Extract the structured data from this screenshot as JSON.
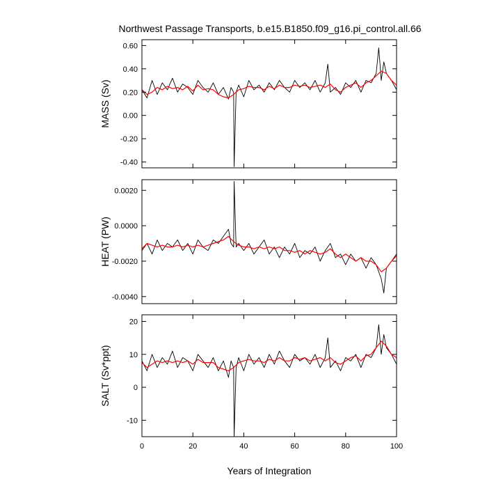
{
  "chart_data": {
    "type": "line",
    "title": "Northwest Passage Transports, b.e15.B1850.f09_g16.pi_control.all.66",
    "xlabel": "Years of Integration",
    "xlim": [
      0,
      100
    ],
    "xticks": [
      "0",
      "20",
      "40",
      "60",
      "80",
      "100"
    ],
    "xtick_values": [
      0,
      20,
      40,
      60,
      80,
      100
    ],
    "grid": false,
    "panels": [
      {
        "ylabel": "MASS (Sv)",
        "ylim": [
          -0.45,
          0.65
        ],
        "yticks": [
          "-0.40",
          "-0.20",
          "0.00",
          "0.20",
          "0.40",
          "0.60"
        ],
        "ytick_values": [
          -0.4,
          -0.2,
          0.0,
          0.2,
          0.4,
          0.6
        ],
        "series": [
          {
            "name": "",
            "color": "#000000",
            "x": [
              0,
              2,
              4,
              6,
              8,
              10,
              12,
              14,
              16,
              18,
              20,
              22,
              24,
              26,
              28,
              30,
              32,
              34,
              35,
              36,
              36.2,
              37,
              38,
              40,
              42,
              44,
              46,
              48,
              50,
              52,
              54,
              56,
              58,
              60,
              62,
              64,
              66,
              68,
              70,
              72,
              73,
              74,
              76,
              78,
              80,
              82,
              84,
              86,
              88,
              90,
              92,
              93,
              94,
              95,
              96,
              98,
              100
            ],
            "values": [
              0.22,
              0.15,
              0.3,
              0.18,
              0.28,
              0.22,
              0.32,
              0.2,
              0.27,
              0.24,
              0.18,
              0.3,
              0.24,
              0.2,
              0.28,
              0.18,
              0.24,
              0.14,
              0.24,
              0.2,
              -0.44,
              0.2,
              0.26,
              0.16,
              0.3,
              0.22,
              0.26,
              0.2,
              0.28,
              0.22,
              0.3,
              0.24,
              0.2,
              0.3,
              0.24,
              0.28,
              0.22,
              0.3,
              0.2,
              0.28,
              0.44,
              0.2,
              0.24,
              0.18,
              0.28,
              0.24,
              0.3,
              0.2,
              0.3,
              0.28,
              0.36,
              0.58,
              0.3,
              0.46,
              0.36,
              0.3,
              0.22
            ]
          },
          {
            "name": "",
            "color": "#ff0000",
            "x": [
              0,
              2,
              4,
              6,
              8,
              10,
              12,
              14,
              16,
              18,
              20,
              22,
              24,
              26,
              28,
              30,
              32,
              34,
              36,
              38,
              40,
              42,
              44,
              46,
              48,
              50,
              52,
              54,
              56,
              58,
              60,
              62,
              64,
              66,
              68,
              70,
              72,
              74,
              76,
              78,
              80,
              82,
              84,
              86,
              88,
              90,
              92,
              94,
              96,
              98,
              100
            ],
            "values": [
              0.22,
              0.18,
              0.2,
              0.24,
              0.22,
              0.25,
              0.23,
              0.24,
              0.22,
              0.25,
              0.21,
              0.26,
              0.22,
              0.23,
              0.22,
              0.18,
              0.16,
              0.15,
              0.18,
              0.22,
              0.23,
              0.25,
              0.24,
              0.24,
              0.22,
              0.25,
              0.23,
              0.26,
              0.24,
              0.24,
              0.26,
              0.25,
              0.26,
              0.24,
              0.25,
              0.26,
              0.24,
              0.27,
              0.22,
              0.2,
              0.24,
              0.26,
              0.28,
              0.24,
              0.28,
              0.3,
              0.34,
              0.38,
              0.36,
              0.3,
              0.26
            ]
          }
        ]
      },
      {
        "ylabel": "HEAT (PW)",
        "ylim": [
          -0.0044,
          0.0026
        ],
        "yticks": [
          "-0.0040",
          "-0.0020",
          "0.0000",
          "0.0020"
        ],
        "ytick_values": [
          -0.004,
          -0.002,
          0.0,
          0.002
        ],
        "series": [
          {
            "name": "",
            "color": "#000000",
            "x": [
              0,
              2,
              4,
              6,
              8,
              10,
              12,
              14,
              16,
              18,
              20,
              22,
              24,
              26,
              28,
              30,
              32,
              34,
              35,
              36,
              36.2,
              37,
              38,
              40,
              42,
              44,
              46,
              48,
              50,
              52,
              54,
              56,
              58,
              60,
              62,
              64,
              66,
              68,
              70,
              72,
              74,
              76,
              78,
              80,
              82,
              84,
              86,
              88,
              90,
              92,
              94,
              95,
              96,
              98,
              100
            ],
            "values": [
              -0.0014,
              -0.001,
              -0.0016,
              -0.0008,
              -0.0014,
              -0.001,
              -0.0012,
              -0.0008,
              -0.0014,
              -0.001,
              -0.0016,
              -0.0008,
              -0.0012,
              -0.0014,
              -0.0008,
              -0.001,
              -0.0006,
              -0.0002,
              -0.001,
              -0.0012,
              0.0025,
              -0.0012,
              -0.001,
              -0.0014,
              -0.001,
              -0.0016,
              -0.0012,
              -0.0008,
              -0.0016,
              -0.0012,
              -0.0018,
              -0.0012,
              -0.0016,
              -0.001,
              -0.0018,
              -0.0014,
              -0.0016,
              -0.0012,
              -0.002,
              -0.0014,
              -0.001,
              -0.0018,
              -0.0016,
              -0.0022,
              -0.0016,
              -0.002,
              -0.0018,
              -0.0024,
              -0.0018,
              -0.0022,
              -0.003,
              -0.0038,
              -0.0024,
              -0.002,
              -0.0016
            ]
          },
          {
            "name": "",
            "color": "#ff0000",
            "x": [
              0,
              2,
              4,
              6,
              8,
              10,
              12,
              14,
              16,
              18,
              20,
              22,
              24,
              26,
              28,
              30,
              32,
              34,
              36,
              38,
              40,
              42,
              44,
              46,
              48,
              50,
              52,
              54,
              56,
              58,
              60,
              62,
              64,
              66,
              68,
              70,
              72,
              74,
              76,
              78,
              80,
              82,
              84,
              86,
              88,
              90,
              92,
              94,
              96,
              98,
              100
            ],
            "values": [
              -0.0013,
              -0.001,
              -0.0011,
              -0.0012,
              -0.0011,
              -0.0012,
              -0.0012,
              -0.0011,
              -0.0012,
              -0.0011,
              -0.0012,
              -0.0011,
              -0.0012,
              -0.0011,
              -0.001,
              -0.0009,
              -0.0008,
              -0.0006,
              -0.0009,
              -0.0011,
              -0.0012,
              -0.0012,
              -0.0013,
              -0.0012,
              -0.0013,
              -0.0012,
              -0.0013,
              -0.0012,
              -0.0014,
              -0.0014,
              -0.0015,
              -0.0014,
              -0.0016,
              -0.0014,
              -0.0015,
              -0.0016,
              -0.0015,
              -0.0013,
              -0.0016,
              -0.0018,
              -0.0016,
              -0.0018,
              -0.002,
              -0.0018,
              -0.002,
              -0.002,
              -0.0022,
              -0.0026,
              -0.0024,
              -0.002,
              -0.0017
            ]
          }
        ]
      },
      {
        "ylabel": "SALT (Sv*ppt)",
        "ylim": [
          -15,
          22
        ],
        "yticks": [
          "-10",
          "0",
          "10",
          "20"
        ],
        "ytick_values": [
          -10,
          0,
          10,
          20
        ],
        "series": [
          {
            "name": "",
            "color": "#000000",
            "x": [
              0,
              2,
              4,
              6,
              8,
              10,
              12,
              14,
              16,
              18,
              20,
              22,
              24,
              26,
              28,
              30,
              32,
              34,
              35,
              36,
              36.2,
              37,
              38,
              40,
              42,
              44,
              46,
              48,
              50,
              52,
              54,
              56,
              58,
              60,
              62,
              64,
              66,
              68,
              70,
              72,
              73,
              74,
              76,
              78,
              80,
              82,
              84,
              86,
              88,
              90,
              92,
              93,
              94,
              95,
              96,
              98,
              100
            ],
            "values": [
              8,
              5,
              10,
              6,
              9,
              7,
              11,
              6,
              9,
              8,
              5,
              10,
              8,
              6,
              9,
              5,
              8,
              3,
              8,
              6,
              -15,
              6,
              9,
              5,
              10,
              7,
              9,
              6,
              10,
              7,
              11,
              8,
              6,
              10,
              8,
              9,
              7,
              10,
              6,
              9,
              15,
              6,
              8,
              5,
              9,
              8,
              10,
              6,
              10,
              9,
              12,
              19,
              10,
              16,
              12,
              10,
              7
            ]
          },
          {
            "name": "",
            "color": "#ff0000",
            "x": [
              0,
              2,
              4,
              6,
              8,
              10,
              12,
              14,
              16,
              18,
              20,
              22,
              24,
              26,
              28,
              30,
              32,
              34,
              36,
              38,
              40,
              42,
              44,
              46,
              48,
              50,
              52,
              54,
              56,
              58,
              60,
              62,
              64,
              66,
              68,
              70,
              72,
              74,
              76,
              78,
              80,
              82,
              84,
              86,
              88,
              90,
              92,
              94,
              96,
              98,
              100
            ],
            "values": [
              7.5,
              6,
              7,
              8,
              7.5,
              8,
              7.5,
              8,
              7.5,
              8,
              7,
              8.5,
              7.5,
              7.5,
              7.5,
              6,
              5.5,
              5,
              6,
              7.5,
              8,
              8.5,
              8,
              8,
              7.5,
              8.5,
              8,
              9,
              8,
              8,
              9,
              8.5,
              9,
              8,
              8.5,
              9,
              8,
              9,
              7.5,
              7,
              8,
              9,
              9.5,
              8,
              9.5,
              10,
              12,
              14,
              12.5,
              10,
              9
            ]
          }
        ]
      }
    ]
  }
}
